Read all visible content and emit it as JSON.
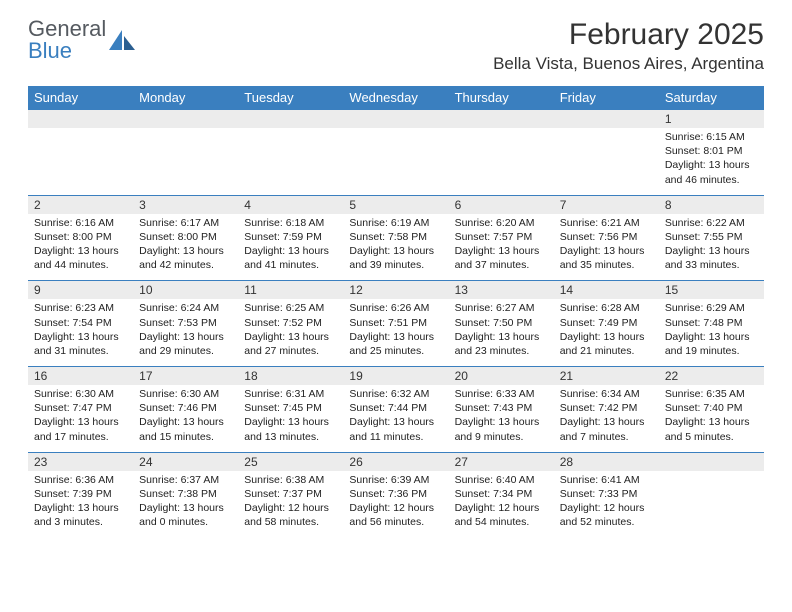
{
  "logo": {
    "word1": "General",
    "word2": "Blue"
  },
  "header": {
    "month_year": "February 2025",
    "location": "Bella Vista, Buenos Aires, Argentina"
  },
  "colors": {
    "header_blue": "#3a7fbf",
    "numrow_bg": "#ececec",
    "text": "#222222",
    "page_bg": "#ffffff"
  },
  "day_labels": [
    "Sunday",
    "Monday",
    "Tuesday",
    "Wednesday",
    "Thursday",
    "Friday",
    "Saturday"
  ],
  "weeks": [
    {
      "nums": [
        "",
        "",
        "",
        "",
        "",
        "",
        "1"
      ],
      "cells": [
        {},
        {},
        {},
        {},
        {},
        {},
        {
          "sunrise": "Sunrise: 6:15 AM",
          "sunset": "Sunset: 8:01 PM",
          "day1": "Daylight: 13 hours",
          "day2": "and 46 minutes."
        }
      ]
    },
    {
      "nums": [
        "2",
        "3",
        "4",
        "5",
        "6",
        "7",
        "8"
      ],
      "cells": [
        {
          "sunrise": "Sunrise: 6:16 AM",
          "sunset": "Sunset: 8:00 PM",
          "day1": "Daylight: 13 hours",
          "day2": "and 44 minutes."
        },
        {
          "sunrise": "Sunrise: 6:17 AM",
          "sunset": "Sunset: 8:00 PM",
          "day1": "Daylight: 13 hours",
          "day2": "and 42 minutes."
        },
        {
          "sunrise": "Sunrise: 6:18 AM",
          "sunset": "Sunset: 7:59 PM",
          "day1": "Daylight: 13 hours",
          "day2": "and 41 minutes."
        },
        {
          "sunrise": "Sunrise: 6:19 AM",
          "sunset": "Sunset: 7:58 PM",
          "day1": "Daylight: 13 hours",
          "day2": "and 39 minutes."
        },
        {
          "sunrise": "Sunrise: 6:20 AM",
          "sunset": "Sunset: 7:57 PM",
          "day1": "Daylight: 13 hours",
          "day2": "and 37 minutes."
        },
        {
          "sunrise": "Sunrise: 6:21 AM",
          "sunset": "Sunset: 7:56 PM",
          "day1": "Daylight: 13 hours",
          "day2": "and 35 minutes."
        },
        {
          "sunrise": "Sunrise: 6:22 AM",
          "sunset": "Sunset: 7:55 PM",
          "day1": "Daylight: 13 hours",
          "day2": "and 33 minutes."
        }
      ]
    },
    {
      "nums": [
        "9",
        "10",
        "11",
        "12",
        "13",
        "14",
        "15"
      ],
      "cells": [
        {
          "sunrise": "Sunrise: 6:23 AM",
          "sunset": "Sunset: 7:54 PM",
          "day1": "Daylight: 13 hours",
          "day2": "and 31 minutes."
        },
        {
          "sunrise": "Sunrise: 6:24 AM",
          "sunset": "Sunset: 7:53 PM",
          "day1": "Daylight: 13 hours",
          "day2": "and 29 minutes."
        },
        {
          "sunrise": "Sunrise: 6:25 AM",
          "sunset": "Sunset: 7:52 PM",
          "day1": "Daylight: 13 hours",
          "day2": "and 27 minutes."
        },
        {
          "sunrise": "Sunrise: 6:26 AM",
          "sunset": "Sunset: 7:51 PM",
          "day1": "Daylight: 13 hours",
          "day2": "and 25 minutes."
        },
        {
          "sunrise": "Sunrise: 6:27 AM",
          "sunset": "Sunset: 7:50 PM",
          "day1": "Daylight: 13 hours",
          "day2": "and 23 minutes."
        },
        {
          "sunrise": "Sunrise: 6:28 AM",
          "sunset": "Sunset: 7:49 PM",
          "day1": "Daylight: 13 hours",
          "day2": "and 21 minutes."
        },
        {
          "sunrise": "Sunrise: 6:29 AM",
          "sunset": "Sunset: 7:48 PM",
          "day1": "Daylight: 13 hours",
          "day2": "and 19 minutes."
        }
      ]
    },
    {
      "nums": [
        "16",
        "17",
        "18",
        "19",
        "20",
        "21",
        "22"
      ],
      "cells": [
        {
          "sunrise": "Sunrise: 6:30 AM",
          "sunset": "Sunset: 7:47 PM",
          "day1": "Daylight: 13 hours",
          "day2": "and 17 minutes."
        },
        {
          "sunrise": "Sunrise: 6:30 AM",
          "sunset": "Sunset: 7:46 PM",
          "day1": "Daylight: 13 hours",
          "day2": "and 15 minutes."
        },
        {
          "sunrise": "Sunrise: 6:31 AM",
          "sunset": "Sunset: 7:45 PM",
          "day1": "Daylight: 13 hours",
          "day2": "and 13 minutes."
        },
        {
          "sunrise": "Sunrise: 6:32 AM",
          "sunset": "Sunset: 7:44 PM",
          "day1": "Daylight: 13 hours",
          "day2": "and 11 minutes."
        },
        {
          "sunrise": "Sunrise: 6:33 AM",
          "sunset": "Sunset: 7:43 PM",
          "day1": "Daylight: 13 hours",
          "day2": "and 9 minutes."
        },
        {
          "sunrise": "Sunrise: 6:34 AM",
          "sunset": "Sunset: 7:42 PM",
          "day1": "Daylight: 13 hours",
          "day2": "and 7 minutes."
        },
        {
          "sunrise": "Sunrise: 6:35 AM",
          "sunset": "Sunset: 7:40 PM",
          "day1": "Daylight: 13 hours",
          "day2": "and 5 minutes."
        }
      ]
    },
    {
      "nums": [
        "23",
        "24",
        "25",
        "26",
        "27",
        "28",
        ""
      ],
      "cells": [
        {
          "sunrise": "Sunrise: 6:36 AM",
          "sunset": "Sunset: 7:39 PM",
          "day1": "Daylight: 13 hours",
          "day2": "and 3 minutes."
        },
        {
          "sunrise": "Sunrise: 6:37 AM",
          "sunset": "Sunset: 7:38 PM",
          "day1": "Daylight: 13 hours",
          "day2": "and 0 minutes."
        },
        {
          "sunrise": "Sunrise: 6:38 AM",
          "sunset": "Sunset: 7:37 PM",
          "day1": "Daylight: 12 hours",
          "day2": "and 58 minutes."
        },
        {
          "sunrise": "Sunrise: 6:39 AM",
          "sunset": "Sunset: 7:36 PM",
          "day1": "Daylight: 12 hours",
          "day2": "and 56 minutes."
        },
        {
          "sunrise": "Sunrise: 6:40 AM",
          "sunset": "Sunset: 7:34 PM",
          "day1": "Daylight: 12 hours",
          "day2": "and 54 minutes."
        },
        {
          "sunrise": "Sunrise: 6:41 AM",
          "sunset": "Sunset: 7:33 PM",
          "day1": "Daylight: 12 hours",
          "day2": "and 52 minutes."
        },
        {}
      ]
    }
  ]
}
